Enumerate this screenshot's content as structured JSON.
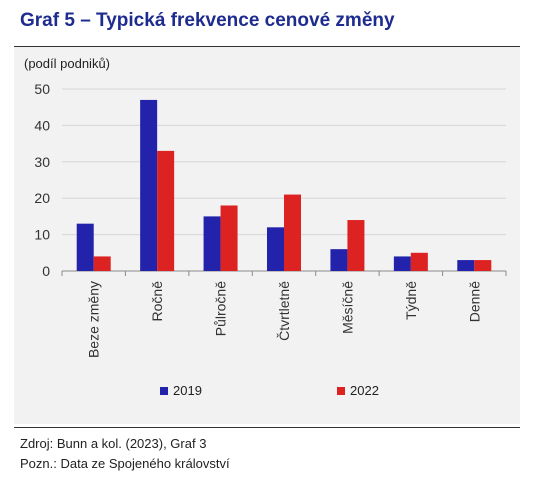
{
  "title": "Graf 5 – Typická frekvence cenové změny",
  "chart_data": {
    "type": "bar",
    "ylabel": "(podíl podniků)",
    "ylim": [
      0,
      50
    ],
    "yticks": [
      0,
      10,
      20,
      30,
      40,
      50
    ],
    "grid": true,
    "legend_position": "bottom",
    "categories": [
      "Beze změny",
      "Ročně",
      "Půlročně",
      "Čtvrtletně",
      "Měsíčně",
      "Týdně",
      "Denně"
    ],
    "series": [
      {
        "name": "2019",
        "color": "#2222aa",
        "values": [
          13,
          47,
          15,
          12,
          6,
          4,
          3
        ]
      },
      {
        "name": "2022",
        "color": "#dd2222",
        "values": [
          4,
          33,
          18,
          21,
          14,
          5,
          3
        ]
      }
    ]
  },
  "footer": {
    "source": "Zdroj: Bunn a kol. (2023), Graf 3",
    "note": "Pozn.: Data ze Spojeného království"
  }
}
